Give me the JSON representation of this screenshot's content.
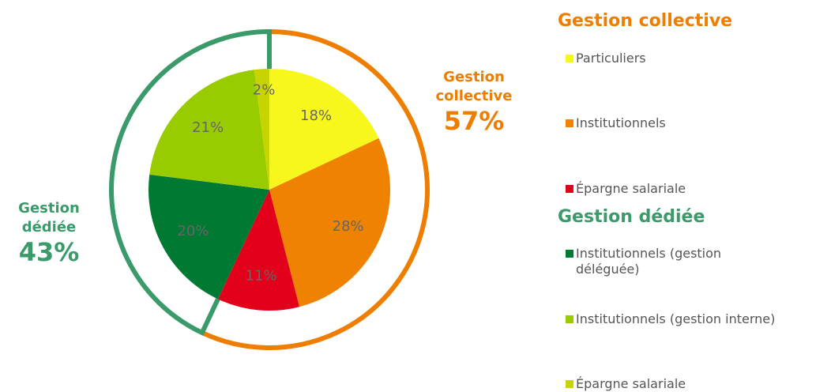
{
  "chart_data": {
    "type": "pie",
    "groups": [
      {
        "name": "Gestion collective",
        "total": 57,
        "total_label": "57%",
        "color": "#ee7d00",
        "ring_connectors": false,
        "categories": [
          "Particuliers",
          "Institutionnels",
          "Épargne salariale"
        ],
        "values": [
          18,
          28,
          11
        ],
        "value_labels": [
          "18%",
          "28%",
          "11%"
        ],
        "colors": [
          "#f7f71e",
          "#ef8200",
          "#e2001a"
        ]
      },
      {
        "name": "Gestion dédiée",
        "total": 43,
        "total_label": "43%",
        "color": "#3a9a6a",
        "ring_connectors": true,
        "categories": [
          "Institutionnels (gestion déléguée)",
          "Institutionnels (gestion interne)",
          "Épargne salariale"
        ],
        "values": [
          20,
          21,
          2
        ],
        "value_labels": [
          "20%",
          "21%",
          "2%"
        ],
        "colors": [
          "#007a33",
          "#99cc00",
          "#c8d400"
        ]
      }
    ]
  }
}
